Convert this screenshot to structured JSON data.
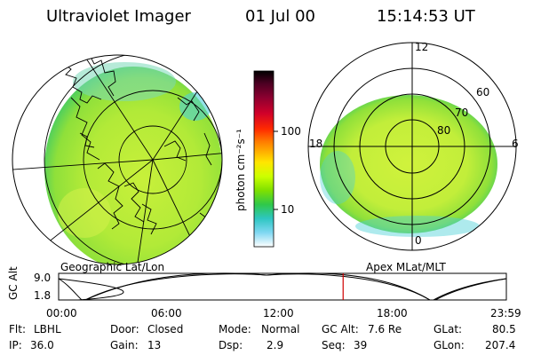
{
  "header": {
    "instrument": "Ultraviolet Imager",
    "date": "01 Jul 00",
    "time": "15:14:53 UT"
  },
  "left_panel": {
    "caption": "Geographic Lat/Lon"
  },
  "right_panel": {
    "caption": "Apex MLat/MLT",
    "lat_labels": [
      "60",
      "70",
      "80"
    ],
    "mlt_labels": [
      "12",
      "18",
      "6",
      "0"
    ]
  },
  "colorbar": {
    "unit_label": "photon cm⁻²s⁻¹",
    "tick_labels": [
      "100",
      "10"
    ],
    "colors": [
      "#000000",
      "#4b0022",
      "#8b0030",
      "#d0002a",
      "#ff2a00",
      "#ff7a00",
      "#ffb000",
      "#ffe600",
      "#ccff00",
      "#7fe000",
      "#2fc84a",
      "#2ec6c2",
      "#80d8f2",
      "#d8eef8",
      "#ffffff"
    ]
  },
  "timeline": {
    "ylabel": "GC Alt",
    "y_ticks": [
      "9.0",
      "1.8"
    ],
    "x_ticks": [
      "00:00",
      "06:00",
      "12:00",
      "18:00",
      "23:59"
    ],
    "current_time_hours": 15.25,
    "current_marker_color": "#d00000"
  },
  "info": {
    "filter_label": "Flt:",
    "filter_value": "LBHL",
    "ip_label": "IP:",
    "ip_value": "36.0",
    "door_label": "Door:",
    "door_value": "Closed",
    "gain_label": "Gain:",
    "gain_value": "13",
    "mode_label": "Mode:",
    "mode_value": "Normal",
    "dsp_label": "Dsp:",
    "dsp_value": "2.9",
    "gcalt_label": "GC Alt:",
    "gcalt_value": "7.6 Re",
    "seq_label": "Seq:",
    "seq_value": "39",
    "glat_label": "GLat:",
    "glat_value": "80.5",
    "glon_label": "GLon:",
    "glon_value": "207.4"
  },
  "colors": {
    "aurora_base": "#c8f03a",
    "aurora_mid": "#8fe03a",
    "aurora_edge": "#37c86a",
    "aurora_cyan": "#4cd0d8"
  }
}
